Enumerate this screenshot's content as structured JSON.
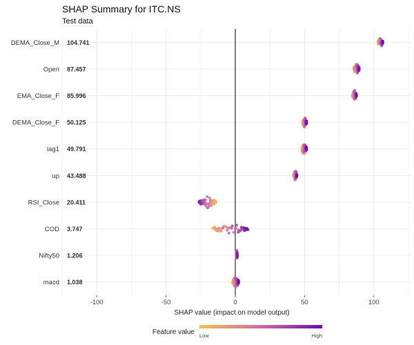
{
  "chart_data": {
    "type": "scatter",
    "title": "SHAP Summary for ITC.NS",
    "subtitle": "Test data",
    "xlabel": "SHAP value (impact on model output)",
    "xlim": [
      -125,
      127
    ],
    "xticks": [
      -100,
      -50,
      0,
      50,
      100
    ],
    "grid": true,
    "features": [
      {
        "name": "DEMA_Close_M",
        "mean_abs_shap": "104.741",
        "shap_range": [
          103.0,
          106.5
        ]
      },
      {
        "name": "Open",
        "mean_abs_shap": "87.457",
        "shap_range": [
          85.5,
          89.5
        ]
      },
      {
        "name": "EMA_Close_F",
        "mean_abs_shap": "85.996",
        "shap_range": [
          84.5,
          87.5
        ]
      },
      {
        "name": "DEMA_Close_F",
        "mean_abs_shap": "50.125",
        "shap_range": [
          48.5,
          51.5
        ]
      },
      {
        "name": "lag1",
        "mean_abs_shap": "49.791",
        "shap_range": [
          48.0,
          51.5
        ]
      },
      {
        "name": "up",
        "mean_abs_shap": "43.488",
        "shap_range": [
          42.0,
          44.5
        ]
      },
      {
        "name": "RSI_Close",
        "mean_abs_shap": "20.411",
        "shap_range": [
          -26.0,
          -14.0
        ]
      },
      {
        "name": "COD",
        "mean_abs_shap": "3.747",
        "shap_range": [
          -16.0,
          9.0
        ]
      },
      {
        "name": "Nifty50",
        "mean_abs_shap": "1.206",
        "shap_range": [
          0.5,
          1.5
        ]
      },
      {
        "name": "macd",
        "mean_abs_shap": "1.038",
        "shap_range": [
          -2.0,
          2.5
        ]
      }
    ],
    "legend": {
      "title": "Feature value",
      "low_label": "Low",
      "high_label": "High",
      "low_color": "#F2C14E",
      "mid_color": "#D16BA5",
      "high_color": "#6A0DAD",
      "placement": "bottom"
    }
  }
}
